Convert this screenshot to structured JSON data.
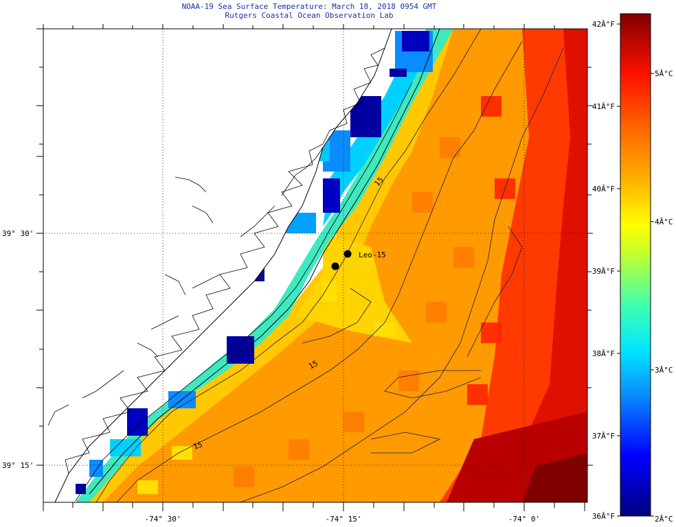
{
  "title": "NOAA-19 Sea Surface Temperature:  March 18, 2018 0954 GMT",
  "subtitle": "Rutgers Coastal Ocean Observation Lab",
  "axes": {
    "x_ticks": [
      "-74° 30'",
      "-74° 15'",
      "-74° 0'"
    ],
    "y_ticks": [
      "39° 30'",
      "39° 15'"
    ]
  },
  "colorbar": {
    "fahrenheit_labels": [
      "42Â°F",
      "41Â°F",
      "40Â°F",
      "39Â°F",
      "38Â°F",
      "37Â°F",
      "36Â°F"
    ],
    "celsius_labels": [
      "5Â°C",
      "4Â°C",
      "3Â°C",
      "2Â°C"
    ],
    "colors": [
      "#0a0a8c",
      "#0000ff",
      "#0a8cff",
      "#00e6ff",
      "#40ffb0",
      "#b0ff40",
      "#ffff00",
      "#ffc000",
      "#ff8000",
      "#ff3000",
      "#e00000",
      "#800000"
    ]
  },
  "markers": {
    "station_label": "Leo-15"
  },
  "contour_labels": [
    "15",
    "15",
    "15"
  ]
}
